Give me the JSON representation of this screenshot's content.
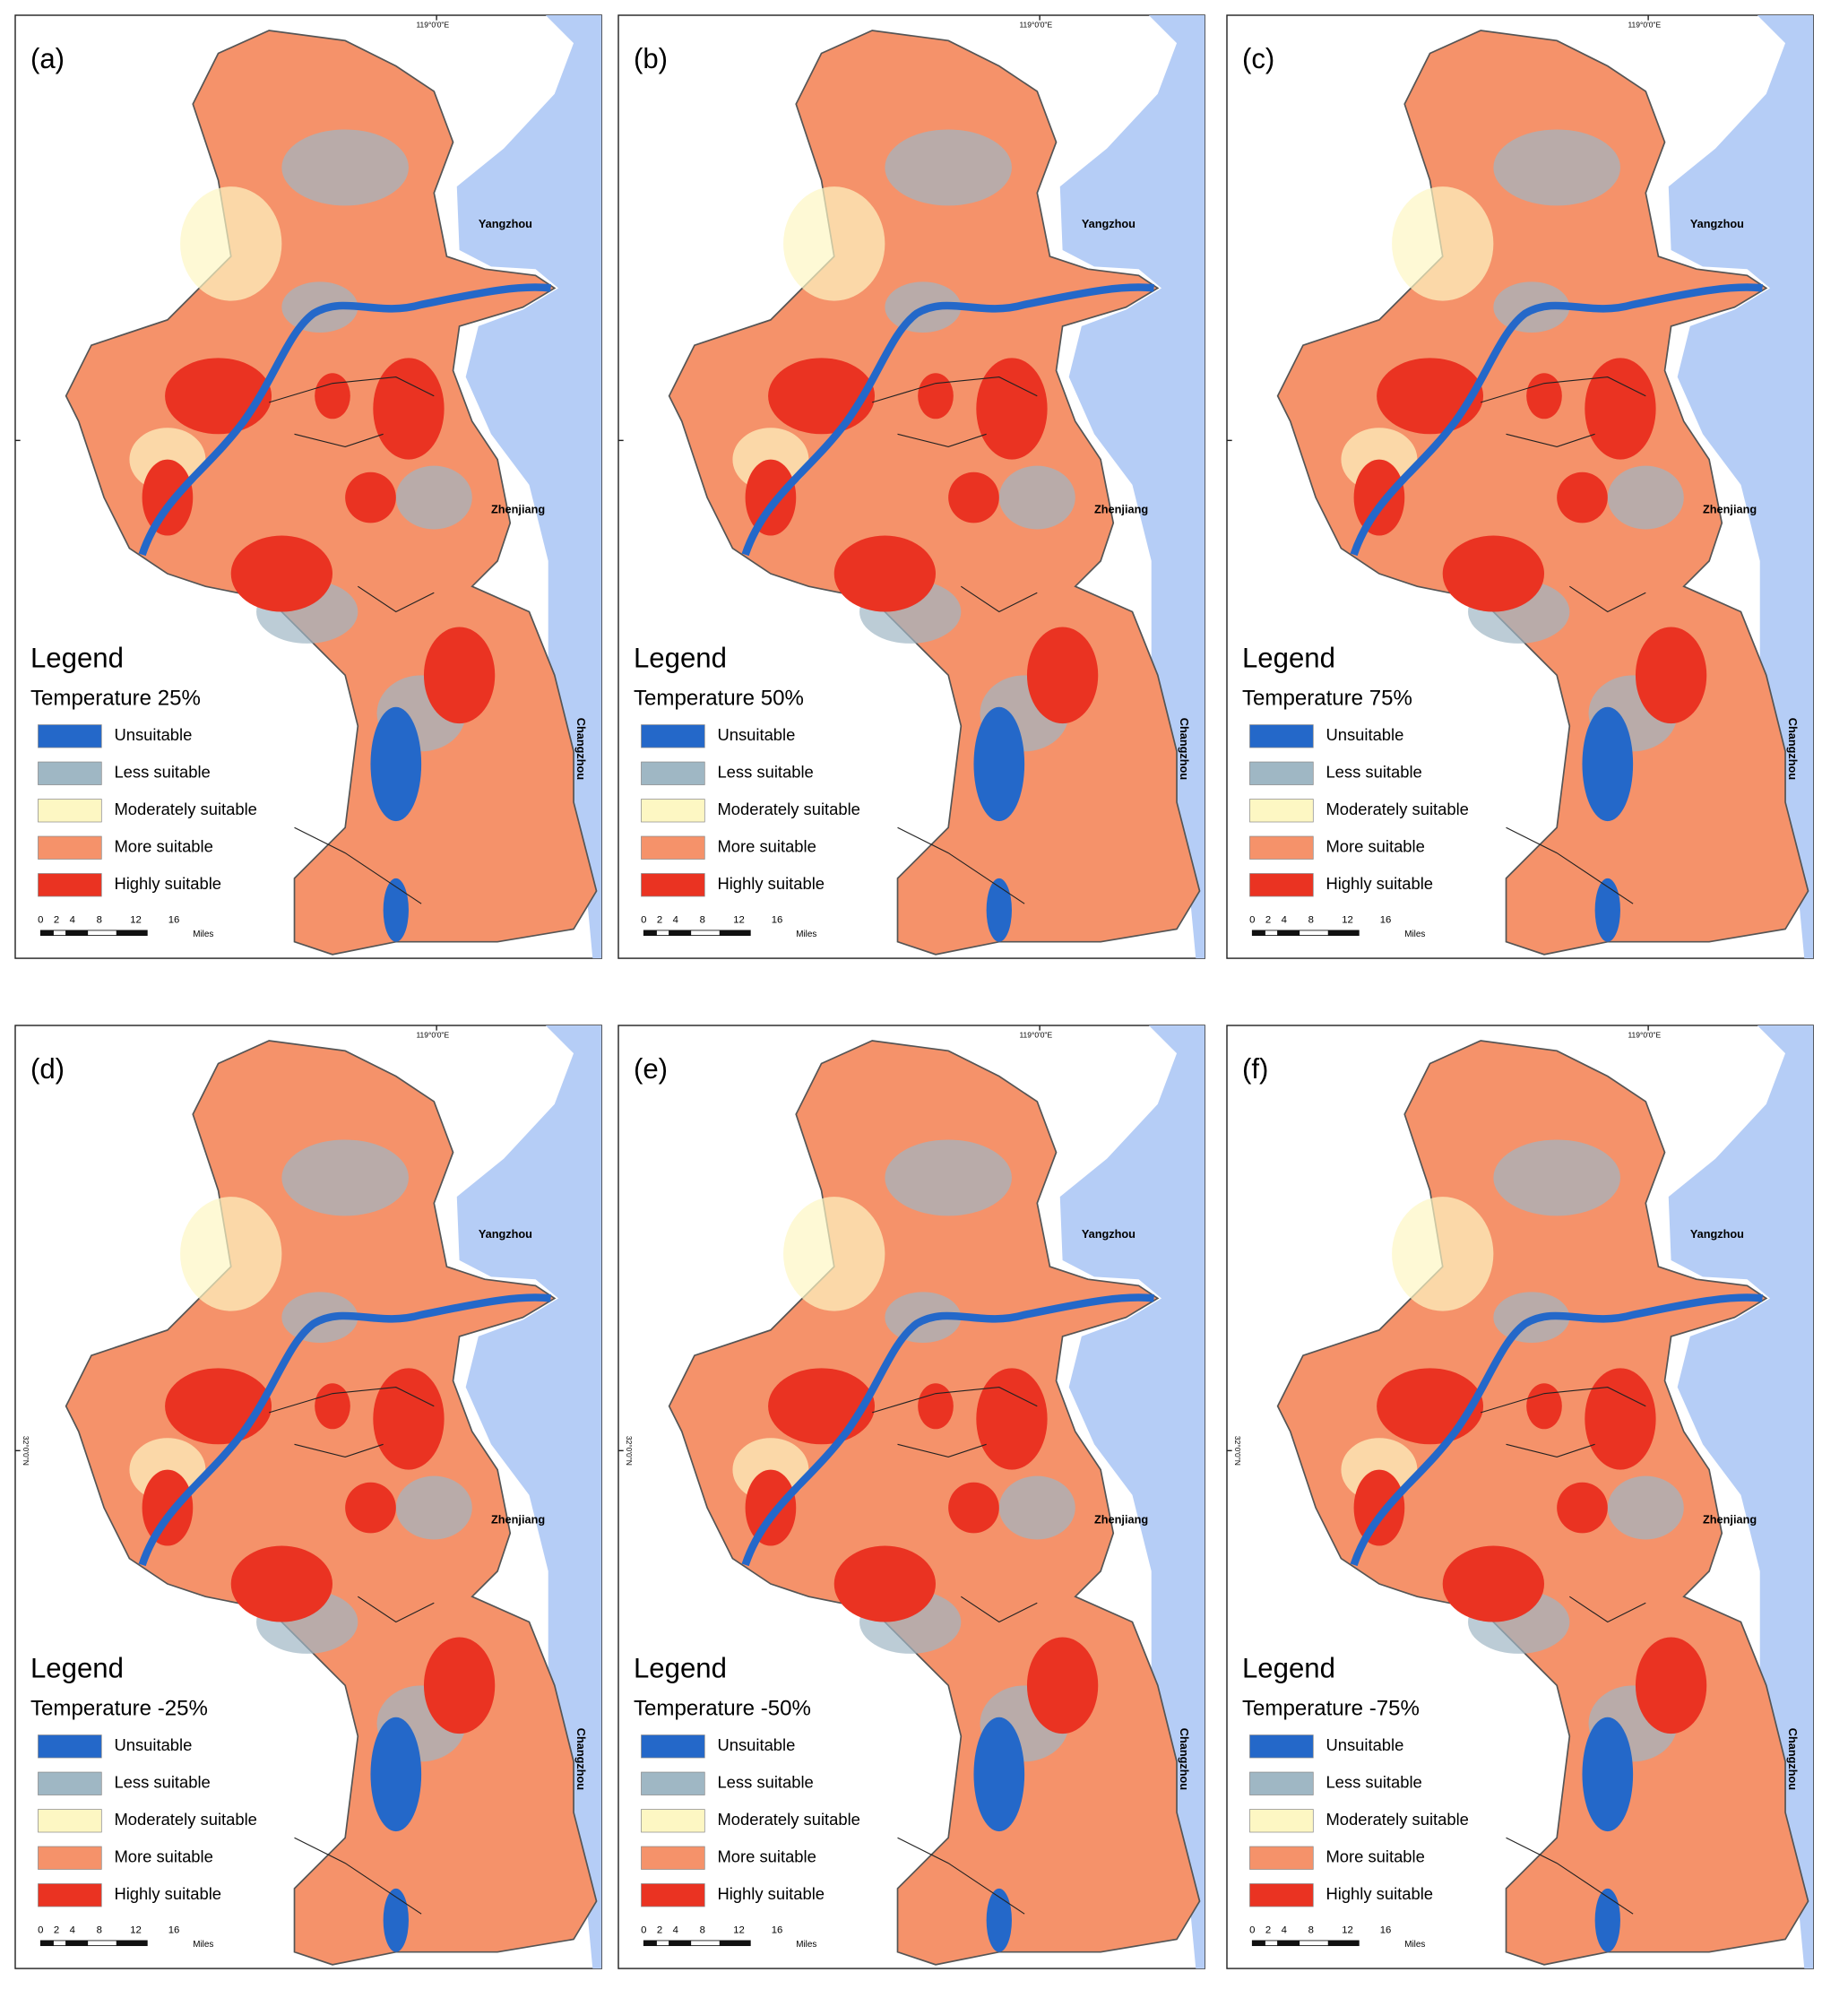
{
  "panels": [
    {
      "label": "(a)",
      "scenario": "Temperature 25%",
      "lon_label": "119°0'0\"E",
      "lat_label": null
    },
    {
      "label": "(b)",
      "scenario": "Temperature 50%",
      "lon_label": "119°0'0\"E",
      "lat_label": null
    },
    {
      "label": "(c)",
      "scenario": "Temperature 75%",
      "lon_label": "119°0'0\"E",
      "lat_label": null
    },
    {
      "label": "(d)",
      "scenario": "Temperature -25%",
      "lon_label": "119°0'0\"E",
      "lat_label": "32°0'0\"N"
    },
    {
      "label": "(e)",
      "scenario": "Temperature -50%",
      "lon_label": "119°0'0\"E",
      "lat_label": "32°0'0\"N"
    },
    {
      "label": "(f)",
      "scenario": "Temperature -75%",
      "lon_label": "119°0'0\"E",
      "lat_label": "32°0'0\"N"
    }
  ],
  "legend_title": "Legend",
  "legend_items": [
    {
      "label": "Unsuitable",
      "color": "#2468c9"
    },
    {
      "label": "Less suitable",
      "color": "#9fb7c4"
    },
    {
      "label": "Moderately suitable",
      "color": "#fdf7c3"
    },
    {
      "label": "More suitable",
      "color": "#f5926a"
    },
    {
      "label": "Highly suitable",
      "color": "#ea3322"
    }
  ],
  "place_names": [
    "Yangzhou",
    "Zhenjiang",
    "Changzhou"
  ],
  "scale_bar": {
    "ticks": [
      "0",
      "2",
      "4",
      "8",
      "12",
      "16"
    ],
    "unit": "Miles"
  }
}
